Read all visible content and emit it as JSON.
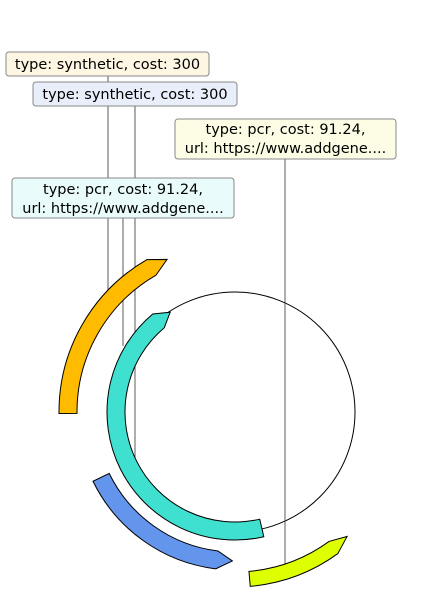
{
  "map": {
    "features": [
      {
        "id": "f1",
        "label_lines": [
          "type: synthetic, cost: 300"
        ],
        "color": "#ffbb00",
        "label_fill": "#fdf6e3"
      },
      {
        "id": "f2",
        "label_lines": [
          "type: synthetic, cost: 300"
        ],
        "color": "#6495ed",
        "label_fill": "#e9eefb"
      },
      {
        "id": "f3",
        "label_lines": [
          "type: pcr, cost: 91.24,",
          "url: https://www.addgene...."
        ],
        "color": "#ddff00",
        "label_fill": "#fdfde6"
      },
      {
        "id": "f4",
        "label_lines": [
          "type: pcr, cost: 91.24,",
          "url: https://www.addgene...."
        ],
        "color": "#40e0d0",
        "label_fill": "#e9fbfb"
      }
    ]
  }
}
